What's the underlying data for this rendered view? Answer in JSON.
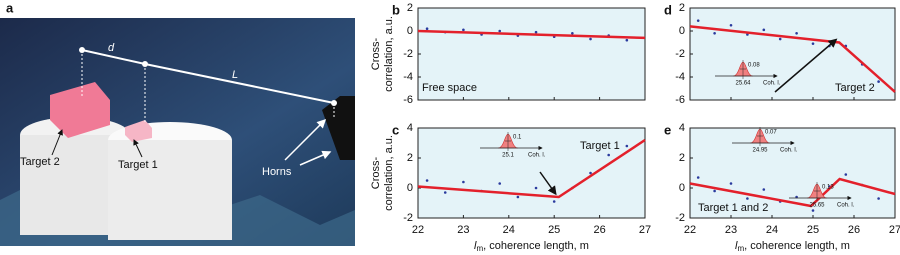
{
  "photo": {
    "panel": "a",
    "labels": {
      "d": "d",
      "L": "L",
      "target2": "Target 2",
      "target1": "Target 1",
      "horns": "Horns"
    }
  },
  "chart_data": [
    {
      "type": "scatter",
      "panel": "b",
      "annotation": "Free space",
      "ylabel": [
        "Cross-",
        "correlation, a.u."
      ],
      "xlim": [
        22,
        27
      ],
      "xticks": [
        22,
        23,
        24,
        25,
        26,
        27
      ],
      "show_xtick_labels": false,
      "ylim": [
        -6,
        2
      ],
      "yticks": [
        2,
        0,
        -2,
        -4,
        -6
      ],
      "fit": {
        "color": "#e3202b",
        "x": [
          22,
          27
        ],
        "values": [
          0,
          -0.6
        ]
      },
      "points": {
        "color": "#2a3a9e",
        "x": [
          22.2,
          22.6,
          23.0,
          23.4,
          23.8,
          24.2,
          24.6,
          25.0,
          25.4,
          25.8,
          26.2,
          26.6
        ],
        "values": [
          0.2,
          -0.1,
          0.1,
          -0.3,
          0.0,
          -0.4,
          -0.1,
          -0.5,
          -0.2,
          -0.7,
          -0.4,
          -0.8
        ]
      },
      "insets": []
    },
    {
      "type": "scatter",
      "panel": "c",
      "annotation": "Target 1",
      "ylabel": [
        "Cross-",
        "correlation, a.u."
      ],
      "xlabel": {
        "symbol": "l",
        "sub": "m",
        "text": ", coherence length, m"
      },
      "xlim": [
        22,
        27
      ],
      "xticks": [
        22,
        23,
        24,
        25,
        26,
        27
      ],
      "show_xtick_labels": true,
      "ylim": [
        -2,
        4
      ],
      "yticks": [
        4,
        2,
        0,
        -2
      ],
      "fit": {
        "color": "#e3202b",
        "x": [
          22,
          25.1,
          27
        ],
        "values": [
          0.1,
          -0.6,
          3.2
        ]
      },
      "points": {
        "color": "#2a3a9e",
        "x": [
          22.2,
          22.6,
          23.0,
          23.4,
          23.8,
          24.2,
          24.6,
          25.0,
          25.4,
          25.8,
          26.2,
          26.6
        ],
        "values": [
          0.5,
          -0.3,
          0.4,
          -0.2,
          0.3,
          -0.6,
          0.0,
          -0.9,
          0.0,
          1.0,
          2.2,
          2.8
        ]
      },
      "insets": [
        {
          "sigma": "0.1",
          "center": "25.1",
          "axis": "Coh. l."
        }
      ]
    },
    {
      "type": "scatter",
      "panel": "d",
      "annotation": "Target 2",
      "xlim": [
        22,
        27
      ],
      "xticks": [
        22,
        23,
        24,
        25,
        26,
        27
      ],
      "show_xtick_labels": false,
      "ylim": [
        -6,
        2
      ],
      "yticks": [
        2,
        0,
        -2,
        -4,
        -6
      ],
      "fit": {
        "color": "#e3202b",
        "x": [
          22,
          25.64,
          27
        ],
        "values": [
          0.4,
          -1.0,
          -5.3
        ]
      },
      "points": {
        "color": "#2a3a9e",
        "x": [
          22.2,
          22.6,
          23.0,
          23.4,
          23.8,
          24.2,
          24.6,
          25.0,
          25.4,
          25.8,
          26.2,
          26.6
        ],
        "values": [
          0.9,
          -0.2,
          0.5,
          -0.3,
          0.1,
          -0.7,
          -0.2,
          -1.1,
          -1.3,
          -1.3,
          -2.9,
          -4.4
        ]
      },
      "insets": [
        {
          "sigma": "0.08",
          "center": "25.64",
          "axis": "Coh. l."
        }
      ]
    },
    {
      "type": "scatter",
      "panel": "e",
      "annotation": "Target 1 and 2",
      "xlabel": {
        "symbol": "l",
        "sub": "m",
        "text": ", coherence length, m"
      },
      "xlim": [
        22,
        27
      ],
      "xticks": [
        22,
        23,
        24,
        25,
        26,
        27
      ],
      "show_xtick_labels": true,
      "ylim": [
        -2,
        4
      ],
      "yticks": [
        4,
        2,
        0,
        -2
      ],
      "fit": {
        "color": "#e3202b",
        "x": [
          22,
          24.95,
          25.65,
          27
        ],
        "values": [
          0.3,
          -1.2,
          0.6,
          -0.4
        ]
      },
      "points": {
        "color": "#2a3a9e",
        "x": [
          22.2,
          22.6,
          23.0,
          23.4,
          23.8,
          24.2,
          24.6,
          25.0,
          25.4,
          25.8,
          26.2,
          26.6
        ],
        "values": [
          0.7,
          -0.2,
          0.3,
          -0.7,
          -0.1,
          -0.9,
          -0.6,
          -1.5,
          0.1,
          0.9,
          0.2,
          -0.7
        ]
      },
      "insets": [
        {
          "sigma": "0.07",
          "center": "24.95",
          "axis": "Coh. l."
        },
        {
          "sigma": "0.13",
          "center": "25.65",
          "axis": "Coh. l."
        }
      ]
    }
  ]
}
